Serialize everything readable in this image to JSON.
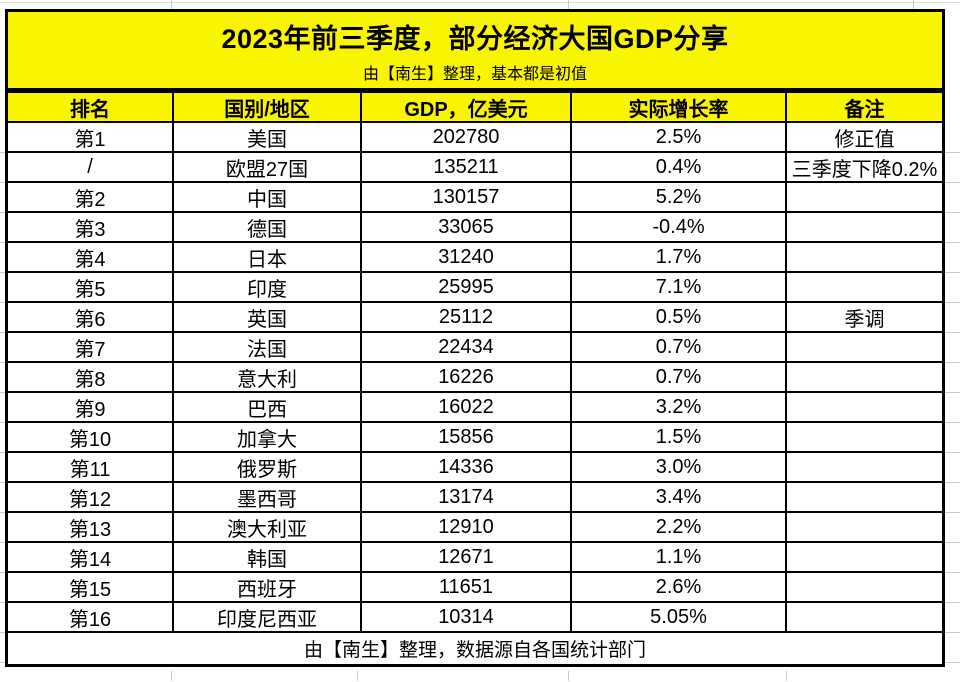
{
  "banner": {
    "title": "2023年前三季度，部分经济大国GDP分享",
    "subtitle": "由【南生】整理，基本都是初值"
  },
  "table": {
    "headers": [
      "排名",
      "国别/地区",
      "GDP，亿美元",
      "实际增长率",
      "备注"
    ],
    "rows": [
      {
        "rank": "第1",
        "country": "美国",
        "gdp": "202780",
        "growth": "2.5%",
        "note": "修正值"
      },
      {
        "rank": "/",
        "country": "欧盟27国",
        "gdp": "135211",
        "growth": "0.4%",
        "note": "三季度下降0.2%"
      },
      {
        "rank": "第2",
        "country": "中国",
        "gdp": "130157",
        "growth": "5.2%",
        "note": ""
      },
      {
        "rank": "第3",
        "country": "德国",
        "gdp": "33065",
        "growth": "-0.4%",
        "note": ""
      },
      {
        "rank": "第4",
        "country": "日本",
        "gdp": "31240",
        "growth": "1.7%",
        "note": ""
      },
      {
        "rank": "第5",
        "country": "印度",
        "gdp": "25995",
        "growth": "7.1%",
        "note": ""
      },
      {
        "rank": "第6",
        "country": "英国",
        "gdp": "25112",
        "growth": "0.5%",
        "note": "季调"
      },
      {
        "rank": "第7",
        "country": "法国",
        "gdp": "22434",
        "growth": "0.7%",
        "note": ""
      },
      {
        "rank": "第8",
        "country": "意大利",
        "gdp": "16226",
        "growth": "0.7%",
        "note": ""
      },
      {
        "rank": "第9",
        "country": "巴西",
        "gdp": "16022",
        "growth": "3.2%",
        "note": ""
      },
      {
        "rank": "第10",
        "country": "加拿大",
        "gdp": "15856",
        "growth": "1.5%",
        "note": ""
      },
      {
        "rank": "第11",
        "country": "俄罗斯",
        "gdp": "14336",
        "growth": "3.0%",
        "note": ""
      },
      {
        "rank": "第12",
        "country": "墨西哥",
        "gdp": "13174",
        "growth": "3.4%",
        "note": ""
      },
      {
        "rank": "第13",
        "country": "澳大利亚",
        "gdp": "12910",
        "growth": "2.2%",
        "note": ""
      },
      {
        "rank": "第14",
        "country": "韩国",
        "gdp": "12671",
        "growth": "1.1%",
        "note": ""
      },
      {
        "rank": "第15",
        "country": "西班牙",
        "gdp": "11651",
        "growth": "2.6%",
        "note": ""
      },
      {
        "rank": "第16",
        "country": "印度尼西亚",
        "gdp": "10314",
        "growth": "5.05%",
        "note": ""
      }
    ],
    "footer": "由【南生】整理，数据源自各国统计部门"
  },
  "colors": {
    "highlight_bg": "#F9F400",
    "border": "#000000",
    "text": "#000000",
    "gridline": "#C9C9C9",
    "cell_bg": "#FFFFFF"
  },
  "chart_data": {
    "type": "table",
    "title": "2023年前三季度，部分经济大国GDP分享",
    "subtitle": "由【南生】整理，基本都是初值",
    "columns": [
      "排名",
      "国别/地区",
      "GDP，亿美元",
      "实际增长率",
      "备注"
    ],
    "rows": [
      [
        "第1",
        "美国",
        202780,
        "2.5%",
        "修正值"
      ],
      [
        "/",
        "欧盟27国",
        135211,
        "0.4%",
        "三季度下降0.2%"
      ],
      [
        "第2",
        "中国",
        130157,
        "5.2%",
        ""
      ],
      [
        "第3",
        "德国",
        33065,
        "-0.4%",
        ""
      ],
      [
        "第4",
        "日本",
        31240,
        "1.7%",
        ""
      ],
      [
        "第5",
        "印度",
        25995,
        "7.1%",
        ""
      ],
      [
        "第6",
        "英国",
        25112,
        "0.5%",
        "季调"
      ],
      [
        "第7",
        "法国",
        22434,
        "0.7%",
        ""
      ],
      [
        "第8",
        "意大利",
        16226,
        "0.7%",
        ""
      ],
      [
        "第9",
        "巴西",
        16022,
        "3.2%",
        ""
      ],
      [
        "第10",
        "加拿大",
        15856,
        "1.5%",
        ""
      ],
      [
        "第11",
        "俄罗斯",
        14336,
        "3.0%",
        ""
      ],
      [
        "第12",
        "墨西哥",
        13174,
        "3.4%",
        ""
      ],
      [
        "第13",
        "澳大利亚",
        12910,
        "2.2%",
        ""
      ],
      [
        "第14",
        "韩国",
        12671,
        "1.1%",
        ""
      ],
      [
        "第15",
        "西班牙",
        11651,
        "2.6%",
        ""
      ],
      [
        "第16",
        "印度尼西亚",
        10314,
        "5.05%",
        ""
      ]
    ],
    "footer": "由【南生】整理，数据源自各国统计部门"
  }
}
